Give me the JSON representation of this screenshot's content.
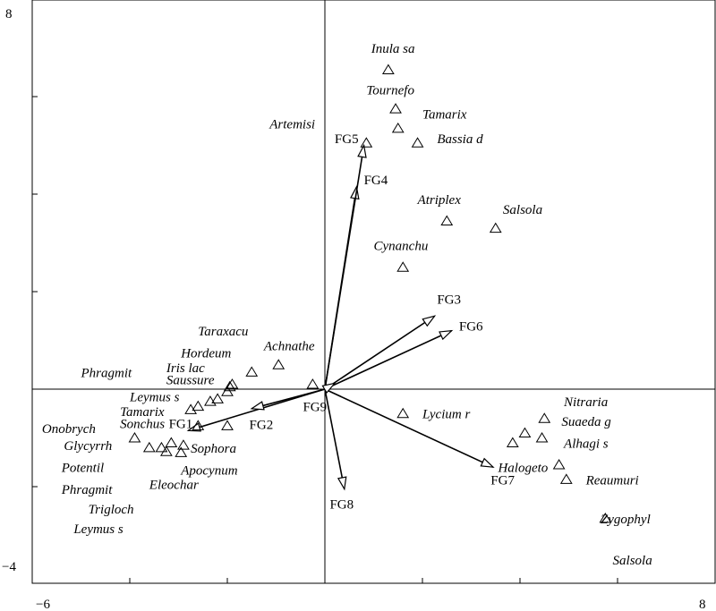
{
  "chart_data": {
    "type": "scatter",
    "title": "",
    "xlabel": "",
    "ylabel": "",
    "xlim": [
      -6,
      8
    ],
    "ylim": [
      -4,
      8
    ],
    "tick_labels": {
      "xmin": "−6",
      "xmax": "8",
      "ymin": "−4",
      "ymax": "8"
    },
    "species": [
      {
        "name": "Inula sa",
        "x": 1.3,
        "y": 6.55,
        "lx": 0.95,
        "ly": 6.9,
        "anchor": "start"
      },
      {
        "name": "Tournefo",
        "x": 1.45,
        "y": 5.75,
        "lx": 0.85,
        "ly": 6.05,
        "anchor": "start"
      },
      {
        "name": "Tamarix",
        "x": 1.5,
        "y": 5.35,
        "lx": 2.0,
        "ly": 5.55,
        "anchor": "start"
      },
      {
        "name": "Bassia d",
        "x": 1.9,
        "y": 5.05,
        "lx": 2.3,
        "ly": 5.05,
        "anchor": "start"
      },
      {
        "name": "Artemisi",
        "x": 0.85,
        "y": 5.05,
        "lx": -0.2,
        "ly": 5.35,
        "anchor": "end"
      },
      {
        "name": "Atriplex",
        "x": 2.5,
        "y": 3.45,
        "lx": 1.9,
        "ly": 3.8,
        "anchor": "start"
      },
      {
        "name": "Salsola",
        "x": 3.5,
        "y": 3.3,
        "lx": 3.65,
        "ly": 3.6,
        "anchor": "start"
      },
      {
        "name": "Cynanchu",
        "x": 1.6,
        "y": 2.5,
        "lx": 1.0,
        "ly": 2.85,
        "anchor": "start"
      },
      {
        "name": "Achnathe",
        "x": -0.95,
        "y": 0.5,
        "lx": -1.25,
        "ly": 0.8,
        "anchor": "start"
      },
      {
        "name": "Taraxacu",
        "x": -1.5,
        "y": 0.35,
        "lx": -2.6,
        "ly": 1.1,
        "anchor": "start"
      },
      {
        "name": "Hordeum",
        "x": -1.9,
        "y": 0.1,
        "lx": -2.95,
        "ly": 0.65,
        "anchor": "start"
      },
      {
        "name": "Iris lac",
        "x": -1.95,
        "y": 0.05,
        "lx": -3.25,
        "ly": 0.35,
        "anchor": "start"
      },
      {
        "name": "Saussure",
        "x": -2.0,
        "y": -0.05,
        "lx": -3.25,
        "ly": 0.1,
        "anchor": "start"
      },
      {
        "name": "Phragmit",
        "x": -2.2,
        "y": -0.2,
        "lx": -5.0,
        "ly": 0.25,
        "anchor": "start"
      },
      {
        "name": "Leymus s",
        "x": -2.35,
        "y": -0.25,
        "lx": -4.0,
        "ly": -0.25,
        "anchor": "start"
      },
      {
        "name": "Tamarix",
        "x": -2.6,
        "y": -0.35,
        "lx": -4.2,
        "ly": -0.55,
        "anchor": "start"
      },
      {
        "name": "Sonchus",
        "x": -2.75,
        "y": -0.42,
        "lx": -4.2,
        "ly": -0.8,
        "anchor": "start"
      },
      {
        "name": "Onobrych",
        "x": -3.9,
        "y": -1.0,
        "lx": -5.8,
        "ly": -0.9,
        "anchor": "start"
      },
      {
        "name": "Glycyrrh",
        "x": -3.6,
        "y": -1.2,
        "lx": -5.35,
        "ly": -1.25,
        "anchor": "start"
      },
      {
        "name": "Potentil",
        "x": -3.35,
        "y": -1.2,
        "lx": -5.4,
        "ly": -1.7,
        "anchor": "start"
      },
      {
        "name": "Phragmit",
        "x": -3.15,
        "y": -1.1,
        "lx": -5.4,
        "ly": -2.15,
        "anchor": "start"
      },
      {
        "name": "Trigloch",
        "x": -3.25,
        "y": -1.28,
        "lx": -4.85,
        "ly": -2.55,
        "anchor": "start"
      },
      {
        "name": "Leymus s",
        "x": -2.9,
        "y": -1.15,
        "lx": -5.15,
        "ly": -2.95,
        "anchor": "start"
      },
      {
        "name": "Sophora",
        "x": -2.95,
        "y": -1.3,
        "lx": -2.75,
        "ly": -1.3,
        "anchor": "start"
      },
      {
        "name": "Apocynum",
        "x": -2.0,
        "y": -0.75,
        "lx": -2.95,
        "ly": -1.75,
        "anchor": "start"
      },
      {
        "name": "Eleochar",
        "x": -2.6,
        "y": -0.75,
        "lx": -3.6,
        "ly": -2.05,
        "anchor": "start"
      },
      {
        "name": "Lycium r",
        "x": 1.6,
        "y": -0.5,
        "lx": 2.0,
        "ly": -0.6,
        "anchor": "start"
      },
      {
        "name": "Nitraria",
        "x": 4.5,
        "y": -0.6,
        "lx": 4.9,
        "ly": -0.35,
        "anchor": "start"
      },
      {
        "name": "Suaeda g",
        "x": 4.1,
        "y": -0.9,
        "lx": 4.85,
        "ly": -0.75,
        "anchor": "start"
      },
      {
        "name": "Alhagi s",
        "x": 4.45,
        "y": -1.0,
        "lx": 4.9,
        "ly": -1.2,
        "anchor": "start"
      },
      {
        "name": "Halogeto",
        "x": 3.85,
        "y": -1.1,
        "lx": 3.55,
        "ly": -1.7,
        "anchor": "start"
      },
      {
        "name": "Reaumuri",
        "x": 4.8,
        "y": -1.55,
        "lx": 5.35,
        "ly": -1.95,
        "anchor": "start"
      },
      {
        "name": "Zygophyl",
        "x": 4.95,
        "y": -1.85,
        "lx": 5.65,
        "ly": -2.75,
        "anchor": "start"
      },
      {
        "name": "Salsola",
        "x": 5.75,
        "y": -2.65,
        "lx": 5.9,
        "ly": -3.6,
        "anchor": "start"
      },
      {
        "name": "",
        "x": -0.25,
        "y": 0.1
      }
    ],
    "vectors": [
      {
        "name": "FG1",
        "x": -2.8,
        "y": -0.85,
        "lx": -3.2,
        "ly": -0.8,
        "anchor": "start"
      },
      {
        "name": "FG2",
        "x": -1.5,
        "y": -0.4,
        "lx": -1.55,
        "ly": -0.82,
        "anchor": "start"
      },
      {
        "name": "FG3",
        "x": 2.25,
        "y": 1.5,
        "lx": 2.3,
        "ly": 1.75,
        "anchor": "start"
      },
      {
        "name": "FG4",
        "x": 0.65,
        "y": 4.15,
        "lx": 0.8,
        "ly": 4.2,
        "anchor": "start"
      },
      {
        "name": "FG5",
        "x": 0.8,
        "y": 5.0,
        "lx": 0.2,
        "ly": 5.05,
        "anchor": "start"
      },
      {
        "name": "FG6",
        "x": 2.6,
        "y": 1.2,
        "lx": 2.75,
        "ly": 1.2,
        "anchor": "start"
      },
      {
        "name": "FG7",
        "x": 3.45,
        "y": -1.6,
        "lx": 3.4,
        "ly": -1.95,
        "anchor": "start"
      },
      {
        "name": "FG8",
        "x": 0.4,
        "y": -2.05,
        "lx": 0.1,
        "ly": -2.45,
        "anchor": "start"
      },
      {
        "name": "FG9",
        "x": 0.2,
        "y": 0.12,
        "lx": -0.45,
        "ly": -0.45,
        "anchor": "start"
      }
    ]
  }
}
